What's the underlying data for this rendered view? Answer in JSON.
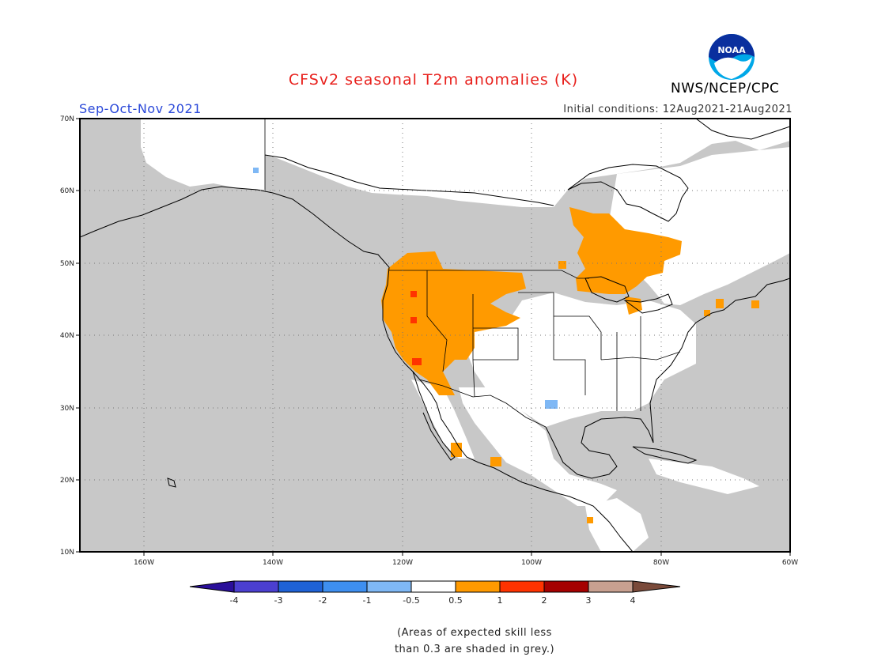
{
  "header": {
    "title": "CFSv2 seasonal T2m anomalies (K)",
    "season": "Sep-Oct-Nov 2021",
    "initial_conditions": "Initial conditions: 12Aug2021-21Aug2021",
    "agency": "NWS/NCEP/CPC",
    "logo_text": "NOAA"
  },
  "map": {
    "lat_labels": [
      "70N",
      "60N",
      "50N",
      "40N",
      "30N",
      "20N",
      "10N"
    ],
    "lon_labels": [
      "160W",
      "140W",
      "120W",
      "100W",
      "80W",
      "60W"
    ],
    "lat_range": [
      10,
      70
    ],
    "lon_range": [
      -170,
      -60
    ],
    "gridlines": "dotted"
  },
  "colorbar": {
    "labels": [
      "-4",
      "-3",
      "-2",
      "-1",
      "-0.5",
      "0.5",
      "1",
      "2",
      "3",
      "4"
    ],
    "colors": [
      "#2a0f9a",
      "#4b3fd0",
      "#1f62d6",
      "#3e8ff0",
      "#7fb8f5",
      "#ffffff",
      "#ff9a00",
      "#ff3300",
      "#a50000",
      "#c8a090",
      "#7a4a3a"
    ]
  },
  "legend_note": {
    "line1": "(Areas of expected skill less",
    "line2": "than 0.3 are shaded in grey.)"
  },
  "colors": {
    "grey_no_skill": "#c8c8c8",
    "anomaly_warm": "#ff9a00",
    "anomaly_hot": "#ff3300",
    "anomaly_cool": "#7fb8f5"
  }
}
